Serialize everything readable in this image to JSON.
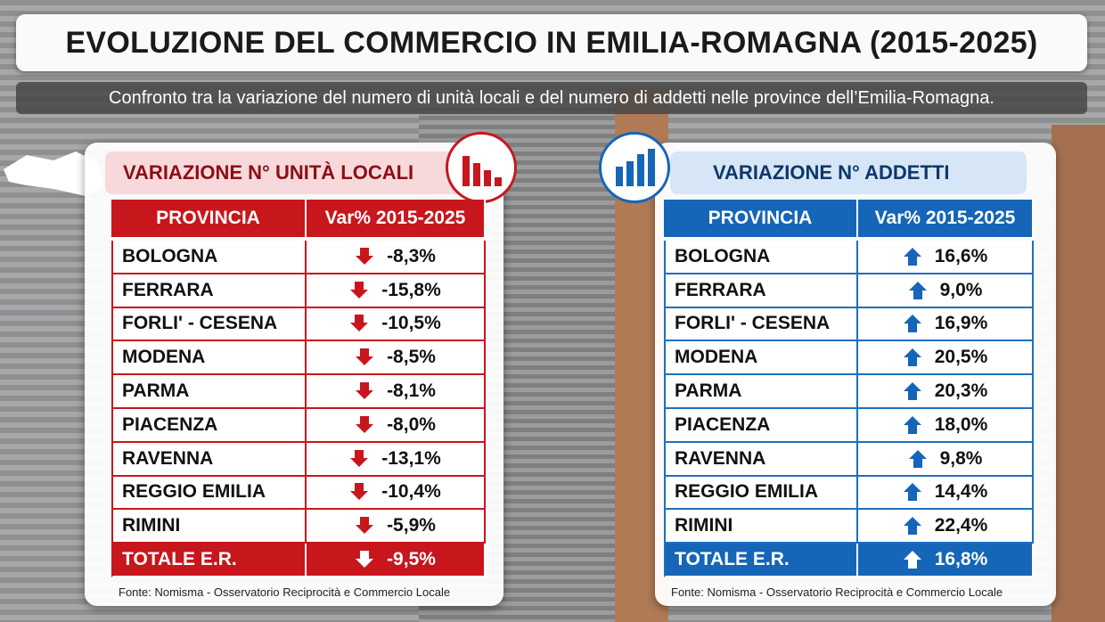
{
  "header": {
    "title": "EVOLUZIONE DEL COMMERCIO IN EMILIA-ROMAGNA (2015-2025)",
    "subtitle": "Confronto tra la variazione del numero di unità locali e del numero di addetti nelle province dell’Emilia-Romagna."
  },
  "panels": [
    {
      "title": "VARIAZIONE N° UNITÀ LOCALI",
      "columns": [
        "PROVINCIA",
        "Var% 2015-2025"
      ],
      "rows": [
        [
          "BOLOGNA",
          "-8,3%"
        ],
        [
          "FERRARA",
          "-15,8%"
        ],
        [
          "FORLI' - CESENA",
          "-10,5%"
        ],
        [
          "MODENA",
          "-8,5%"
        ],
        [
          "PARMA",
          "-8,1%"
        ],
        [
          "PIACENZA",
          "-8,0%"
        ],
        [
          "RAVENNA",
          "-13,1%"
        ],
        [
          "REGGIO EMILIA",
          "-10,4%"
        ],
        [
          "RIMINI",
          "-5,9%"
        ]
      ],
      "total": [
        "TOTALE E.R.",
        "-9,5%"
      ],
      "source": "Fonte: Nomisma - Osservatorio Reciprocità e Commercio Locale"
    },
    {
      "title": "VARIAZIONE N° ADDETTI",
      "columns": [
        "PROVINCIA",
        "Var% 2015-2025"
      ],
      "rows": [
        [
          "BOLOGNA",
          "16,6%"
        ],
        [
          "FERRARA",
          "9,0%"
        ],
        [
          "FORLI' - CESENA",
          "16,9%"
        ],
        [
          "MODENA",
          "20,5%"
        ],
        [
          "PARMA",
          "20,3%"
        ],
        [
          "PIACENZA",
          "18,0%"
        ],
        [
          "RAVENNA",
          "9,8%"
        ],
        [
          "REGGIO EMILIA",
          "14,4%"
        ],
        [
          "RIMINI",
          "22,4%"
        ]
      ],
      "total": [
        "TOTALE E.R.",
        "16,8%"
      ],
      "source": "Fonte: Nomisma - Osservatorio Reciprocità e Commercio Locale"
    }
  ]
}
